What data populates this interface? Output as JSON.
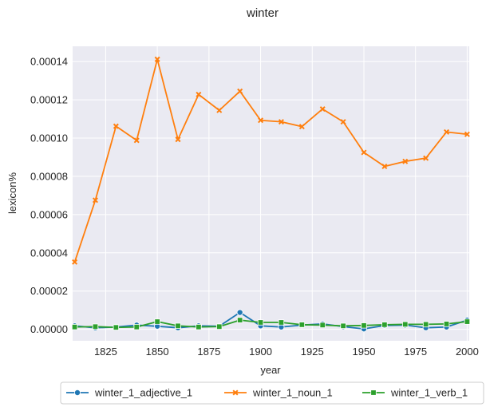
{
  "chart_data": {
    "type": "line",
    "title": "winter",
    "xlabel": "year",
    "ylabel": "lexicon%",
    "xlim": [
      1809,
      2001
    ],
    "ylim": [
      -6e-06,
      0.000148
    ],
    "x_ticks": [
      1825,
      1850,
      1875,
      1900,
      1925,
      1950,
      1975,
      2000
    ],
    "x_tick_labels": [
      "1825",
      "1850",
      "1875",
      "1900",
      "1925",
      "1950",
      "1975",
      "2000"
    ],
    "y_ticks": [
      0,
      2e-05,
      4e-05,
      6e-05,
      8e-05,
      0.0001,
      0.00012,
      0.00014
    ],
    "y_tick_labels": [
      "0.00000",
      "0.00002",
      "0.00004",
      "0.00006",
      "0.00008",
      "0.00010",
      "0.00012",
      "0.00014"
    ],
    "grid": true,
    "legend_position": "bottom-center",
    "x": [
      1810,
      1820,
      1830,
      1840,
      1850,
      1860,
      1870,
      1880,
      1890,
      1900,
      1910,
      1920,
      1930,
      1940,
      1950,
      1960,
      1970,
      1980,
      1990,
      2000
    ],
    "series": [
      {
        "name": "winter_1_adjective_1",
        "color": "#1f77b4",
        "marker": "circle",
        "values": [
          1.8e-06,
          8e-07,
          1.2e-06,
          2.2e-06,
          1.6e-06,
          8e-07,
          1.8e-06,
          1.6e-06,
          8.8e-06,
          1.8e-06,
          1.2e-06,
          2.2e-06,
          2.8e-06,
          1.4e-06,
          2e-07,
          2e-06,
          2.2e-06,
          8e-07,
          1.2e-06,
          4.8e-06
        ]
      },
      {
        "name": "winter_1_noun_1",
        "color": "#ff7f0e",
        "marker": "x",
        "values": [
          3.52e-05,
          6.75e-05,
          0.0001062,
          9.88e-05,
          0.0001412,
          9.93e-05,
          0.0001228,
          0.0001145,
          0.0001245,
          0.0001093,
          0.0001085,
          0.000106,
          0.0001152,
          0.0001085,
          9.25e-05,
          8.52e-05,
          8.78e-05,
          8.95e-05,
          0.0001032,
          0.000102
        ]
      },
      {
        "name": "winter_1_verb_1",
        "color": "#2ca02c",
        "marker": "square",
        "values": [
          1.2e-06,
          1.4e-06,
          1e-06,
          1.2e-06,
          4e-06,
          1.8e-06,
          1.2e-06,
          1.4e-06,
          4.8e-06,
          3.6e-06,
          3.6e-06,
          2.4e-06,
          2.2e-06,
          1.8e-06,
          2e-06,
          2.4e-06,
          2.6e-06,
          2.6e-06,
          2.8e-06,
          4e-06
        ]
      }
    ]
  }
}
